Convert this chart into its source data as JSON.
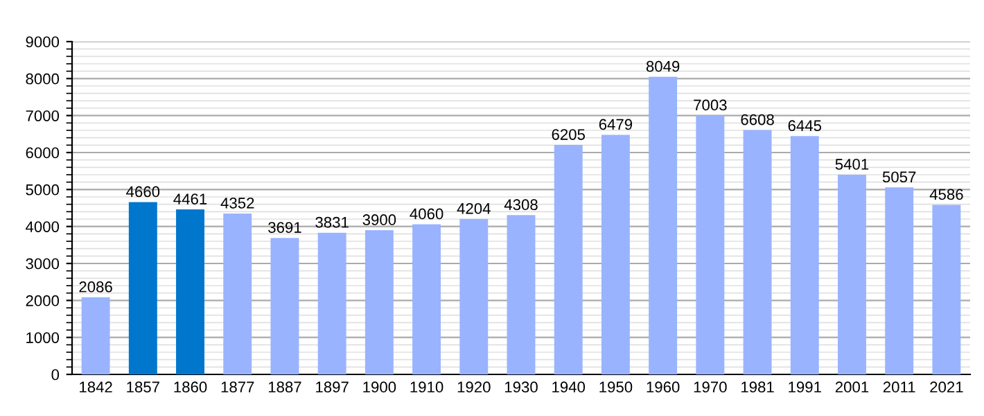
{
  "chart_data": {
    "type": "bar",
    "categories": [
      "1842",
      "1857",
      "1860",
      "1877",
      "1887",
      "1897",
      "1900",
      "1910",
      "1920",
      "1930",
      "1940",
      "1950",
      "1960",
      "1970",
      "1981",
      "1991",
      "2001",
      "2011",
      "2021"
    ],
    "values": [
      2086,
      4660,
      4461,
      4352,
      3691,
      3831,
      3900,
      4060,
      4204,
      4308,
      6205,
      6479,
      8049,
      7003,
      6608,
      6445,
      5401,
      5057,
      4586
    ],
    "colors": [
      "#99b3ff",
      "#0077cc",
      "#0077cc",
      "#99b3ff",
      "#99b3ff",
      "#99b3ff",
      "#99b3ff",
      "#99b3ff",
      "#99b3ff",
      "#99b3ff",
      "#99b3ff",
      "#99b3ff",
      "#99b3ff",
      "#99b3ff",
      "#99b3ff",
      "#99b3ff",
      "#99b3ff",
      "#99b3ff",
      "#99b3ff"
    ],
    "ylim": [
      0,
      9000
    ],
    "yticks": [
      0,
      1000,
      2000,
      3000,
      4000,
      5000,
      6000,
      7000,
      8000,
      9000
    ],
    "grid": "y",
    "data_labels": true,
    "legend": false
  }
}
